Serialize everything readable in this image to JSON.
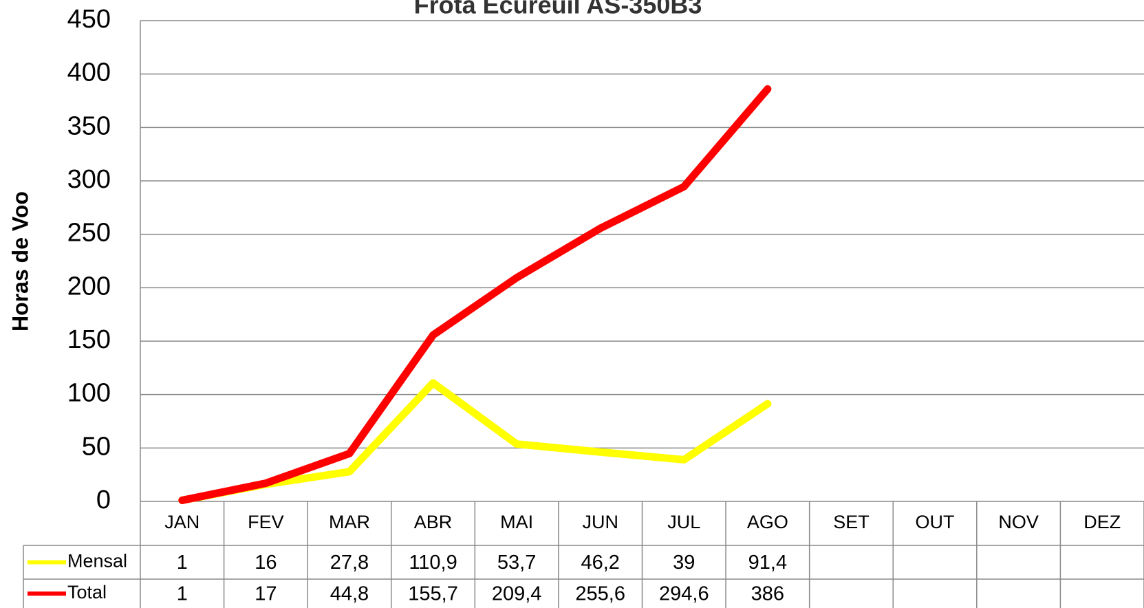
{
  "chart_data": {
    "type": "line",
    "title": "Frota Ecureuil AS-350B3",
    "y_label": "Horas de Voo",
    "categories": [
      "JAN",
      "FEV",
      "MAR",
      "ABR",
      "MAI",
      "JUN",
      "JUL",
      "AGO",
      "SET",
      "OUT",
      "NOV",
      "DEZ"
    ],
    "series": [
      {
        "name": "Mensal",
        "color": "#ffff00",
        "values": [
          1,
          16,
          27.8,
          110.9,
          53.7,
          46.2,
          39,
          91.4,
          null,
          null,
          null,
          null
        ],
        "value_labels": [
          "1",
          "16",
          "27,8",
          "110,9",
          "53,7",
          "46,2",
          "39",
          "91,4",
          null,
          null,
          null,
          null
        ]
      },
      {
        "name": "Total",
        "color": "#ff0000",
        "values": [
          1,
          17,
          44.8,
          155.7,
          209.4,
          255.6,
          294.6,
          386,
          null,
          null,
          null,
          null
        ],
        "value_labels": [
          "1",
          "17",
          "44,8",
          "155,7",
          "209,4",
          "255,6",
          "294,6",
          "386",
          null,
          null,
          null,
          null
        ]
      }
    ],
    "ylim": [
      0,
      450
    ],
    "yticks": [
      0,
      50,
      100,
      150,
      200,
      250,
      300,
      350,
      400,
      450
    ],
    "grid": true
  }
}
